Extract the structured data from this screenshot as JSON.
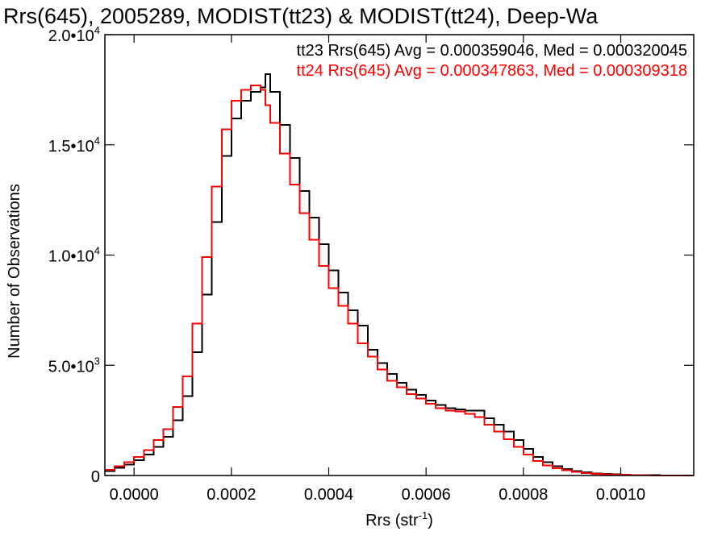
{
  "chart_data": {
    "type": "line",
    "title": "Rrs(645), 2005289, MODIST(tt23) & MODIST(tt24), Deep-Wa",
    "xlabel_main": "Rrs (str",
    "xlabel_sup": "-1",
    "xlabel_close": ")",
    "ylabel": "Number of Observations",
    "xlim": [
      -6e-05,
      0.00115
    ],
    "ylim": [
      0,
      20000
    ],
    "x_ticks": [
      {
        "value": 0.0,
        "label": "0.0000"
      },
      {
        "value": 0.0002,
        "label": "0.0002"
      },
      {
        "value": 0.0004,
        "label": "0.0004"
      },
      {
        "value": 0.0006,
        "label": "0.0006"
      },
      {
        "value": 0.0008,
        "label": "0.0008"
      },
      {
        "value": 0.001,
        "label": "0.0010"
      }
    ],
    "y_ticks": [
      {
        "value": 0,
        "base": "0",
        "exp": ""
      },
      {
        "value": 5000,
        "base": "5.0•10",
        "exp": "3"
      },
      {
        "value": 10000,
        "base": "1.0•10",
        "exp": "4"
      },
      {
        "value": 15000,
        "base": "1.5•10",
        "exp": "4"
      },
      {
        "value": 20000,
        "base": "2.0•10",
        "exp": "4"
      }
    ],
    "annotations": [
      {
        "text": "tt23 Rrs(645) Avg = 0.000359046, Med = 0.000320045",
        "color": "#000000"
      },
      {
        "text": "tt24 Rrs(645) Avg = 0.000347863, Med = 0.000309318",
        "color": "#ff0000"
      }
    ],
    "series": [
      {
        "color": "#000000",
        "x": [
          -6e-05,
          -4e-05,
          -2e-05,
          0.0,
          2e-05,
          4e-05,
          6e-05,
          8e-05,
          0.0001,
          0.00012,
          0.00014,
          0.00016,
          0.00018,
          0.0002,
          0.00022,
          0.00024,
          0.00026,
          0.00027,
          0.00028,
          0.0003,
          0.00032,
          0.00034,
          0.00036,
          0.00038,
          0.0004,
          0.00042,
          0.00044,
          0.00046,
          0.00048,
          0.0005,
          0.00052,
          0.00054,
          0.00056,
          0.00058,
          0.0006,
          0.00062,
          0.00064,
          0.00066,
          0.00068,
          0.0007,
          0.00072,
          0.00074,
          0.00076,
          0.00078,
          0.0008,
          0.00082,
          0.00084,
          0.00086,
          0.00088,
          0.0009,
          0.00092,
          0.00094,
          0.00096,
          0.00098,
          0.001,
          0.00102,
          0.00104,
          0.00106,
          0.00108,
          0.0011,
          0.00112,
          0.00115
        ],
        "y": [
          200,
          350,
          500,
          700,
          950,
          1300,
          1750,
          2500,
          3600,
          5600,
          8200,
          11500,
          14500,
          16200,
          17000,
          17400,
          17600,
          18200,
          17400,
          15900,
          14400,
          12900,
          11700,
          10500,
          9300,
          8300,
          7500,
          6800,
          5700,
          5100,
          4600,
          4200,
          3900,
          3650,
          3400,
          3200,
          3050,
          3000,
          2950,
          2950,
          2600,
          2300,
          2000,
          1600,
          1200,
          850,
          600,
          420,
          300,
          200,
          140,
          100,
          70,
          50,
          35,
          25,
          18,
          12,
          8,
          5,
          3,
          2
        ]
      },
      {
        "color": "#ff0000",
        "x": [
          -6e-05,
          -4e-05,
          -2e-05,
          0.0,
          2e-05,
          4e-05,
          6e-05,
          8e-05,
          0.0001,
          0.00012,
          0.00014,
          0.00016,
          0.00018,
          0.0002,
          0.00022,
          0.00024,
          0.00026,
          0.00027,
          0.00028,
          0.0003,
          0.00032,
          0.00034,
          0.00036,
          0.00038,
          0.0004,
          0.00042,
          0.00044,
          0.00046,
          0.00048,
          0.0005,
          0.00052,
          0.00054,
          0.00056,
          0.00058,
          0.0006,
          0.00062,
          0.00064,
          0.00066,
          0.00068,
          0.0007,
          0.00072,
          0.00074,
          0.00076,
          0.00078,
          0.0008,
          0.00082,
          0.00084,
          0.00086,
          0.00088,
          0.0009,
          0.00092,
          0.00094,
          0.00096,
          0.00098,
          0.001,
          0.00102,
          0.00104,
          0.00106,
          0.00108,
          0.0011,
          0.00112,
          0.00115
        ],
        "y": [
          250,
          420,
          600,
          850,
          1150,
          1600,
          2100,
          3100,
          4500,
          6900,
          9900,
          13100,
          15700,
          17000,
          17500,
          17700,
          17500,
          16800,
          16000,
          14600,
          13200,
          11900,
          10700,
          9500,
          8500,
          7700,
          6900,
          6000,
          5400,
          4800,
          4300,
          4000,
          3700,
          3500,
          3250,
          3050,
          2950,
          2900,
          2800,
          2650,
          2300,
          2000,
          1650,
          1300,
          950,
          650,
          450,
          320,
          230,
          160,
          110,
          80,
          55,
          40,
          28,
          20,
          14,
          9,
          6,
          4,
          3,
          2
        ]
      }
    ]
  }
}
